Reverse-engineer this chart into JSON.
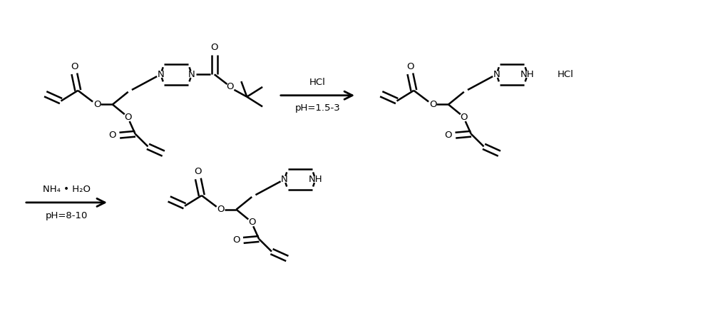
{
  "background_color": "#ffffff",
  "line_color": "#000000",
  "text_color": "#000000",
  "lw": 1.8,
  "fs": 9.5,
  "figsize": [
    10.0,
    4.5
  ],
  "dpi": 100,
  "reaction1_line1": "HCl",
  "reaction1_line2": "pH=1.5-3",
  "reaction2_line1": "NH₄ • H₂O",
  "reaction2_line2": "pH=8-10"
}
